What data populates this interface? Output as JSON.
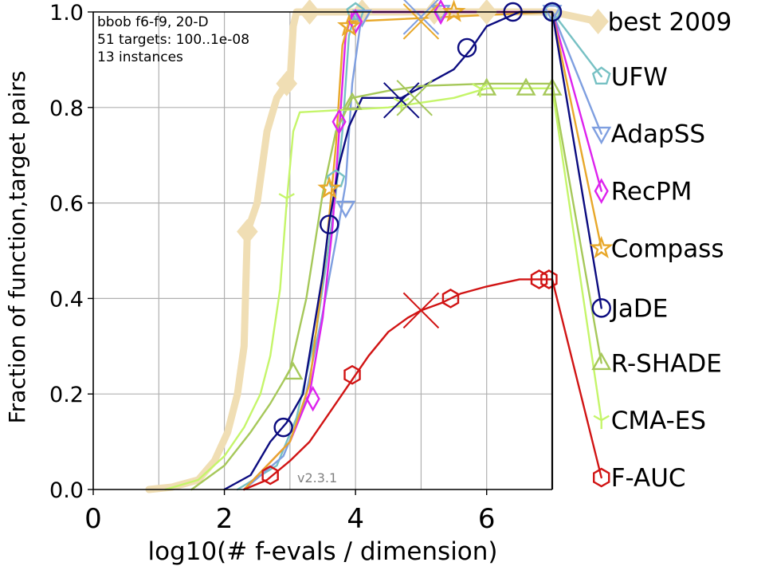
{
  "chart_data": {
    "type": "line",
    "xlabel": "log10(# f-evals / dimension)",
    "ylabel": "Fraction of function,target pairs",
    "xlim": [
      0,
      7
    ],
    "ylim": [
      0,
      1.0
    ],
    "xticks": [
      "0",
      "2",
      "4",
      "6"
    ],
    "yticks": [
      "0.0",
      "0.2",
      "0.4",
      "0.6",
      "0.8",
      "1.0"
    ],
    "grid": true,
    "annotation_lines": [
      "bbob f6-f9, 20-D",
      "51 targets: 100..1e-08",
      "13 instances"
    ],
    "version": "v2.3.1",
    "legend_position": "right",
    "colors": {
      "best 2009": "#f0deb4",
      "UFW": "#77c1c4",
      "AdapSS": "#7f9fe0",
      "RecPM": "#dd22ee",
      "Compass": "#e8a82a",
      "JaDE": "#0c0c80",
      "R-SHADE": "#a6c85a",
      "CMA-ES": "#c5f56a",
      "F-AUC": "#d11414"
    },
    "series": [
      {
        "name": "best 2009",
        "marker": "diamond",
        "points": [
          [
            0.85,
            0.0
          ],
          [
            1.2,
            0.005
          ],
          [
            1.6,
            0.02
          ],
          [
            1.85,
            0.06
          ],
          [
            2.05,
            0.12
          ],
          [
            2.2,
            0.2
          ],
          [
            2.3,
            0.3
          ],
          [
            2.35,
            0.54
          ],
          [
            2.5,
            0.6
          ],
          [
            2.65,
            0.75
          ],
          [
            2.8,
            0.82
          ],
          [
            2.9,
            0.84
          ],
          [
            3.0,
            0.85
          ],
          [
            3.05,
            0.97
          ],
          [
            3.1,
            1.0
          ],
          [
            7.0,
            1.0
          ],
          [
            7.7,
            0.98
          ]
        ],
        "markers_at": [
          [
            2.35,
            0.54
          ],
          [
            2.95,
            0.85
          ],
          [
            3.3,
            1.0
          ],
          [
            4.1,
            1.0
          ],
          [
            5.2,
            1.0
          ],
          [
            6.0,
            1.0
          ],
          [
            7.7,
            0.98
          ]
        ]
      },
      {
        "name": "UFW",
        "marker": "pentagon",
        "points": [
          [
            2.2,
            0.0
          ],
          [
            2.8,
            0.05
          ],
          [
            3.1,
            0.15
          ],
          [
            3.4,
            0.33
          ],
          [
            3.55,
            0.47
          ],
          [
            3.7,
            0.62
          ],
          [
            3.8,
            0.75
          ],
          [
            3.9,
            0.95
          ],
          [
            4.0,
            1.0
          ],
          [
            7.0,
            1.0
          ],
          [
            7.75,
            0.865
          ]
        ],
        "markers_at": [
          [
            3.7,
            0.65
          ],
          [
            4.0,
            1.0
          ],
          [
            7.0,
            1.0
          ],
          [
            7.75,
            0.865
          ]
        ]
      },
      {
        "name": "AdapSS",
        "marker": "triangle-down",
        "points": [
          [
            2.3,
            0.0
          ],
          [
            2.9,
            0.07
          ],
          [
            3.2,
            0.17
          ],
          [
            3.5,
            0.37
          ],
          [
            3.7,
            0.52
          ],
          [
            3.85,
            0.64
          ],
          [
            3.95,
            0.85
          ],
          [
            4.1,
            1.0
          ],
          [
            7.0,
            1.0
          ],
          [
            7.75,
            0.745
          ]
        ],
        "markers_at": [
          [
            3.85,
            0.59
          ],
          [
            4.1,
            0.99
          ],
          [
            5.3,
            1.0
          ],
          [
            7.0,
            1.0
          ],
          [
            7.75,
            0.745
          ]
        ]
      },
      {
        "name": "RecPM",
        "marker": "diamond-thin",
        "points": [
          [
            2.3,
            0.0
          ],
          [
            3.0,
            0.1
          ],
          [
            3.3,
            0.2
          ],
          [
            3.5,
            0.36
          ],
          [
            3.65,
            0.55
          ],
          [
            3.75,
            0.75
          ],
          [
            3.85,
            0.95
          ],
          [
            3.95,
            1.0
          ],
          [
            7.0,
            1.0
          ],
          [
            7.75,
            0.625
          ]
        ],
        "markers_at": [
          [
            3.35,
            0.19
          ],
          [
            3.75,
            0.77
          ],
          [
            4.0,
            0.98
          ],
          [
            5.3,
            1.0
          ],
          [
            7.75,
            0.625
          ]
        ]
      },
      {
        "name": "Compass",
        "marker": "star",
        "points": [
          [
            2.3,
            0.0
          ],
          [
            3.0,
            0.1
          ],
          [
            3.3,
            0.22
          ],
          [
            3.55,
            0.5
          ],
          [
            3.7,
            0.72
          ],
          [
            3.8,
            0.93
          ],
          [
            3.9,
            0.98
          ],
          [
            7.0,
            1.0
          ],
          [
            7.75,
            0.505
          ]
        ],
        "markers_at": [
          [
            3.6,
            0.63
          ],
          [
            3.9,
            0.97
          ],
          [
            5.5,
            1.0
          ],
          [
            7.75,
            0.505
          ]
        ]
      },
      {
        "name": "JaDE",
        "marker": "circle",
        "points": [
          [
            2.0,
            0.0
          ],
          [
            2.4,
            0.03
          ],
          [
            2.7,
            0.1
          ],
          [
            2.95,
            0.14
          ],
          [
            3.2,
            0.2
          ],
          [
            3.5,
            0.45
          ],
          [
            3.6,
            0.56
          ],
          [
            3.75,
            0.68
          ],
          [
            3.9,
            0.76
          ],
          [
            4.1,
            0.82
          ],
          [
            4.7,
            0.82
          ],
          [
            5.1,
            0.85
          ],
          [
            5.5,
            0.88
          ],
          [
            5.75,
            0.92
          ],
          [
            6.0,
            0.97
          ],
          [
            6.5,
            1.0
          ],
          [
            7.0,
            1.0
          ],
          [
            7.75,
            0.38
          ]
        ],
        "markers_at": [
          [
            2.9,
            0.13
          ],
          [
            3.6,
            0.555
          ],
          [
            5.7,
            0.925
          ],
          [
            6.4,
            1.0
          ],
          [
            7.0,
            1.0
          ],
          [
            7.75,
            0.38
          ]
        ]
      },
      {
        "name": "R-SHADE",
        "marker": "triangle-up",
        "points": [
          [
            1.5,
            0.0
          ],
          [
            2.0,
            0.05
          ],
          [
            2.4,
            0.12
          ],
          [
            2.7,
            0.18
          ],
          [
            3.0,
            0.25
          ],
          [
            3.25,
            0.4
          ],
          [
            3.5,
            0.62
          ],
          [
            3.7,
            0.75
          ],
          [
            3.95,
            0.82
          ],
          [
            4.5,
            0.835
          ],
          [
            5.0,
            0.845
          ],
          [
            6.0,
            0.85
          ],
          [
            7.0,
            0.85
          ],
          [
            7.75,
            0.265
          ]
        ],
        "markers_at": [
          [
            3.05,
            0.245
          ],
          [
            3.95,
            0.81
          ],
          [
            6.0,
            0.84
          ],
          [
            6.6,
            0.84
          ],
          [
            7.0,
            0.84
          ],
          [
            7.75,
            0.265
          ]
        ]
      },
      {
        "name": "CMA-ES",
        "marker": "tri",
        "points": [
          [
            1.1,
            0.0
          ],
          [
            1.6,
            0.02
          ],
          [
            2.0,
            0.07
          ],
          [
            2.3,
            0.13
          ],
          [
            2.55,
            0.2
          ],
          [
            2.7,
            0.28
          ],
          [
            2.85,
            0.42
          ],
          [
            2.95,
            0.6
          ],
          [
            3.05,
            0.75
          ],
          [
            3.15,
            0.79
          ],
          [
            4.5,
            0.8
          ],
          [
            5.5,
            0.82
          ],
          [
            6.0,
            0.84
          ],
          [
            7.0,
            0.84
          ],
          [
            7.75,
            0.145
          ]
        ],
        "markers_at": [
          [
            2.95,
            0.61
          ],
          [
            4.7,
            0.81
          ],
          [
            5.9,
            0.84
          ],
          [
            7.75,
            0.145
          ]
        ]
      },
      {
        "name": "F-AUC",
        "marker": "hexagon",
        "points": [
          [
            2.3,
            0.0
          ],
          [
            2.65,
            0.02
          ],
          [
            3.0,
            0.06
          ],
          [
            3.3,
            0.1
          ],
          [
            3.6,
            0.16
          ],
          [
            3.9,
            0.22
          ],
          [
            4.2,
            0.28
          ],
          [
            4.5,
            0.33
          ],
          [
            4.8,
            0.36
          ],
          [
            5.0,
            0.375
          ],
          [
            5.3,
            0.39
          ],
          [
            5.6,
            0.41
          ],
          [
            6.0,
            0.425
          ],
          [
            6.5,
            0.44
          ],
          [
            7.0,
            0.44
          ],
          [
            7.75,
            0.025
          ]
        ],
        "markers_at": [
          [
            2.7,
            0.03
          ],
          [
            3.95,
            0.24
          ],
          [
            5.45,
            0.4
          ],
          [
            6.8,
            0.44
          ],
          [
            6.95,
            0.44
          ],
          [
            7.75,
            0.025
          ]
        ]
      }
    ],
    "cross_markers": [
      {
        "series": "JaDE",
        "x": 4.7,
        "y": 0.815
      },
      {
        "series": "R-SHADE",
        "x": 4.9,
        "y": 0.82
      },
      {
        "series": "F-AUC",
        "x": 5.0,
        "y": 0.375
      },
      {
        "series": "AdapSS",
        "x": 5.0,
        "y": 0.99
      },
      {
        "series": "Compass",
        "x": 5.0,
        "y": 0.98
      }
    ]
  }
}
